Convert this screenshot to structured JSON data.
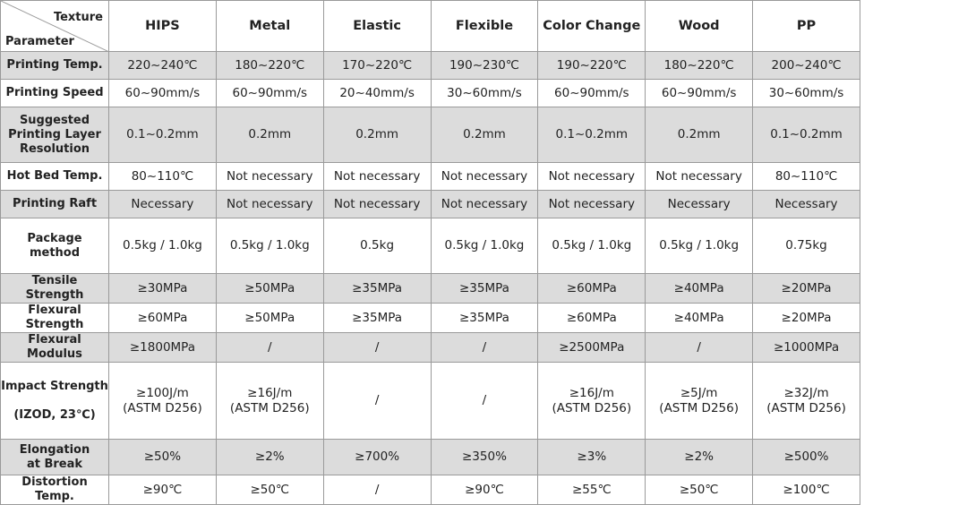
{
  "table": {
    "corner": {
      "top": "Texture",
      "bottom": "Parameter"
    },
    "columns": [
      "HIPS",
      "Metal",
      "Elastic",
      "Flexible",
      "Color Change",
      "Wood",
      "PP"
    ],
    "rows": [
      {
        "label": "Printing Temp.",
        "cells": [
          "220~240℃",
          "180~220℃",
          "170~220℃",
          "190~230℃",
          "190~220℃",
          "180~220℃",
          "200~240℃"
        ]
      },
      {
        "label": "Printing Speed",
        "cells": [
          "60~90mm/s",
          "60~90mm/s",
          "20~40mm/s",
          "30~60mm/s",
          "60~90mm/s",
          "60~90mm/s",
          "30~60mm/s"
        ]
      },
      {
        "label": "Suggested\nPrinting Layer\nResolution",
        "cells": [
          "0.1~0.2mm",
          "0.2mm",
          "0.2mm",
          "0.2mm",
          "0.1~0.2mm",
          "0.2mm",
          "0.1~0.2mm"
        ]
      },
      {
        "label": "Hot Bed Temp.",
        "cells": [
          "80~110℃",
          "Not necessary",
          "Not necessary",
          "Not necessary",
          "Not necessary",
          "Not necessary",
          "80~110℃"
        ]
      },
      {
        "label": "Printing Raft",
        "cells": [
          "Necessary",
          "Not necessary",
          "Not necessary",
          "Not necessary",
          "Not necessary",
          "Necessary",
          "Necessary"
        ]
      },
      {
        "label": "Package\nmethod",
        "cells": [
          "0.5kg / 1.0kg",
          "0.5kg / 1.0kg",
          "0.5kg",
          "0.5kg / 1.0kg",
          "0.5kg / 1.0kg",
          "0.5kg / 1.0kg",
          "0.75kg"
        ]
      },
      {
        "label": "Tensile Strength",
        "cells": [
          "≥30MPa",
          "≥50MPa",
          "≥35MPa",
          "≥35MPa",
          "≥60MPa",
          "≥40MPa",
          "≥20MPa"
        ]
      },
      {
        "label": "Flexural Strength",
        "cells": [
          "≥60MPa",
          "≥50MPa",
          "≥35MPa",
          "≥35MPa",
          "≥60MPa",
          "≥40MPa",
          "≥20MPa"
        ]
      },
      {
        "label": "Flexural Modulus",
        "cells": [
          "≥1800MPa",
          "/",
          "/",
          "/",
          "≥2500MPa",
          "/",
          "≥1000MPa"
        ]
      },
      {
        "label": "Impact Strength\n\n(IZOD, 23℃)",
        "cells": [
          "≥100J/m\n(ASTM D256)",
          "≥16J/m\n(ASTM D256)",
          "/",
          "/",
          "≥16J/m\n(ASTM D256)",
          "≥5J/m\n(ASTM D256)",
          "≥32J/m\n(ASTM D256)"
        ]
      },
      {
        "label": "Elongation\nat Break",
        "cells": [
          "≥50%",
          "≥2%",
          "≥700%",
          "≥350%",
          "≥3%",
          "≥2%",
          "≥500%"
        ]
      },
      {
        "label": "Distortion Temp.",
        "cells": [
          "≥90℃",
          "≥50℃",
          "/",
          "≥90℃",
          "≥55℃",
          "≥50℃",
          "≥100℃"
        ]
      }
    ]
  }
}
